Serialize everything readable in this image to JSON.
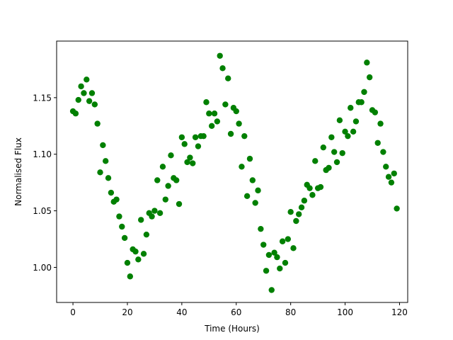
{
  "chart_data": {
    "type": "scatter",
    "xlabel": "Time (Hours)",
    "ylabel": "Normalised Flux",
    "xlim": [
      -6,
      123
    ],
    "ylim": [
      0.969,
      1.2
    ],
    "x_ticks": [
      0,
      20,
      40,
      60,
      80,
      100,
      120
    ],
    "x_tick_labels": [
      "0",
      "20",
      "40",
      "60",
      "80",
      "100",
      "120"
    ],
    "y_ticks": [
      1.0,
      1.05,
      1.1,
      1.15
    ],
    "y_tick_labels": [
      "1.00",
      "1.05",
      "1.10",
      "1.15"
    ],
    "grid": false,
    "series": [
      {
        "color": "#008000",
        "marker": "circle",
        "x": [
          0,
          1,
          2,
          3,
          4,
          5,
          6,
          7,
          8,
          9,
          10,
          11,
          12,
          13,
          14,
          15,
          16,
          17,
          18,
          19,
          20,
          21,
          22,
          23,
          24,
          25,
          26,
          27,
          28,
          29,
          30,
          31,
          32,
          33,
          34,
          35,
          36,
          37,
          38,
          39,
          40,
          41,
          42,
          43,
          44,
          45,
          46,
          47,
          48,
          49,
          50,
          51,
          52,
          53,
          54,
          55,
          56,
          57,
          58,
          59,
          60,
          61,
          62,
          63,
          64,
          65,
          66,
          67,
          68,
          69,
          70,
          71,
          72,
          73,
          74,
          75,
          76,
          77,
          78,
          79,
          80,
          81,
          82,
          83,
          84,
          85,
          86,
          87,
          88,
          89,
          90,
          91,
          92,
          93,
          94,
          95,
          96,
          97,
          98,
          99,
          100,
          101,
          102,
          103,
          104,
          105,
          106,
          107,
          108,
          109,
          110,
          111,
          112,
          113,
          114,
          115,
          116,
          117,
          118,
          119
        ],
        "y": [
          1.138,
          1.136,
          1.148,
          1.16,
          1.154,
          1.166,
          1.147,
          1.154,
          1.144,
          1.127,
          1.084,
          1.108,
          1.094,
          1.079,
          1.066,
          1.058,
          1.06,
          1.045,
          1.036,
          1.026,
          1.004,
          0.992,
          1.016,
          1.014,
          1.007,
          1.042,
          1.012,
          1.029,
          1.048,
          1.045,
          1.05,
          1.077,
          1.048,
          1.089,
          1.06,
          1.072,
          1.099,
          1.079,
          1.077,
          1.056,
          1.115,
          1.109,
          1.093,
          1.097,
          1.092,
          1.115,
          1.107,
          1.116,
          1.116,
          1.146,
          1.136,
          1.125,
          1.136,
          1.129,
          1.187,
          1.176,
          1.144,
          1.167,
          1.118,
          1.141,
          1.138,
          1.127,
          1.089,
          1.116,
          1.063,
          1.096,
          1.077,
          1.057,
          1.068,
          1.034,
          1.02,
          0.997,
          1.011,
          0.98,
          1.013,
          1.009,
          0.999,
          1.023,
          1.004,
          1.025,
          1.049,
          1.017,
          1.041,
          1.047,
          1.053,
          1.059,
          1.073,
          1.07,
          1.064,
          1.094,
          1.07,
          1.071,
          1.106,
          1.086,
          1.088,
          1.115,
          1.102,
          1.093,
          1.13,
          1.101,
          1.12,
          1.116,
          1.141,
          1.12,
          1.129,
          1.146,
          1.146,
          1.155,
          1.181,
          1.168,
          1.139,
          1.137,
          1.11,
          1.127,
          1.102,
          1.089,
          1.08,
          1.075,
          1.083,
          1.052
        ]
      }
    ]
  }
}
